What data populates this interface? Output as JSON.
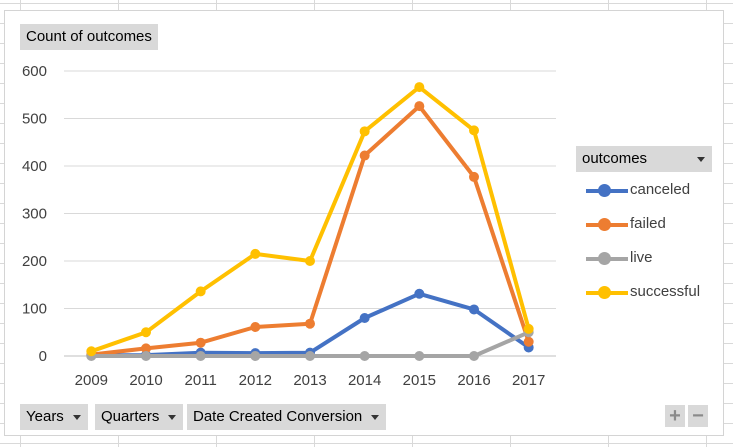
{
  "pivot": {
    "value_field": "Count of outcomes",
    "legend_field": "outcomes",
    "axis_fields": [
      "Years",
      "Quarters",
      "Date Created Conversion"
    ],
    "buttons": {
      "plus": "+",
      "minus": "−"
    }
  },
  "chart_data": {
    "type": "line",
    "categories": [
      "2009",
      "2010",
      "2011",
      "2012",
      "2013",
      "2014",
      "2015",
      "2016",
      "2017"
    ],
    "series": [
      {
        "name": "canceled",
        "color": "#4472c4",
        "values": [
          1,
          2,
          7,
          6,
          7,
          80,
          131,
          98,
          18
        ]
      },
      {
        "name": "failed",
        "color": "#ed7d31",
        "values": [
          3,
          16,
          28,
          61,
          68,
          422,
          526,
          377,
          30
        ]
      },
      {
        "name": "live",
        "color": "#a5a5a5",
        "values": [
          0,
          0,
          0,
          0,
          0,
          0,
          0,
          0,
          50
        ]
      },
      {
        "name": "successful",
        "color": "#ffc000",
        "values": [
          10,
          50,
          136,
          215,
          200,
          473,
          566,
          475,
          57
        ]
      }
    ],
    "ylim": [
      0,
      600
    ],
    "yticks": [
      0,
      100,
      200,
      300,
      400,
      500,
      600
    ],
    "grid": true,
    "legend": "right"
  }
}
